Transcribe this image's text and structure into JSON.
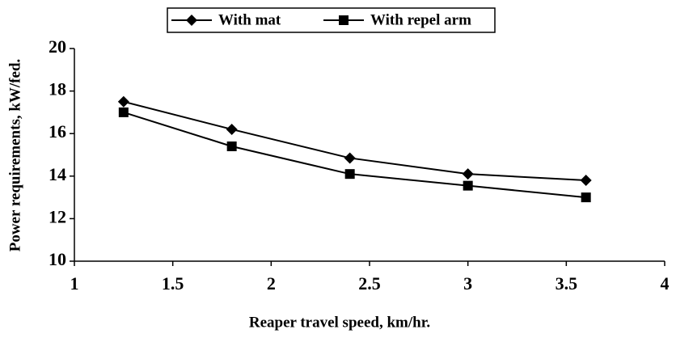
{
  "chart_data": {
    "type": "line",
    "x_label": "Reaper travel speed, km/hr.",
    "y_label": "Power requirements, kW/fed.",
    "x": [
      1.25,
      1.8,
      2.4,
      3,
      3.6
    ],
    "series": [
      {
        "name": "With mat",
        "color": "#000000",
        "marker": "diamond",
        "values": [
          17.5,
          16.2,
          14.85,
          14.1,
          13.8
        ]
      },
      {
        "name": "With repel arm",
        "color": "#000000",
        "marker": "square",
        "values": [
          17.0,
          15.4,
          14.1,
          13.55,
          13.0
        ]
      }
    ],
    "xlim": [
      1,
      4
    ],
    "xticks": [
      1,
      1.5,
      2,
      2.5,
      3,
      3.5,
      4
    ],
    "ylim": [
      10,
      20
    ],
    "yticks": [
      10,
      12,
      14,
      16,
      18,
      20
    ],
    "grid": false,
    "legend": "top"
  }
}
